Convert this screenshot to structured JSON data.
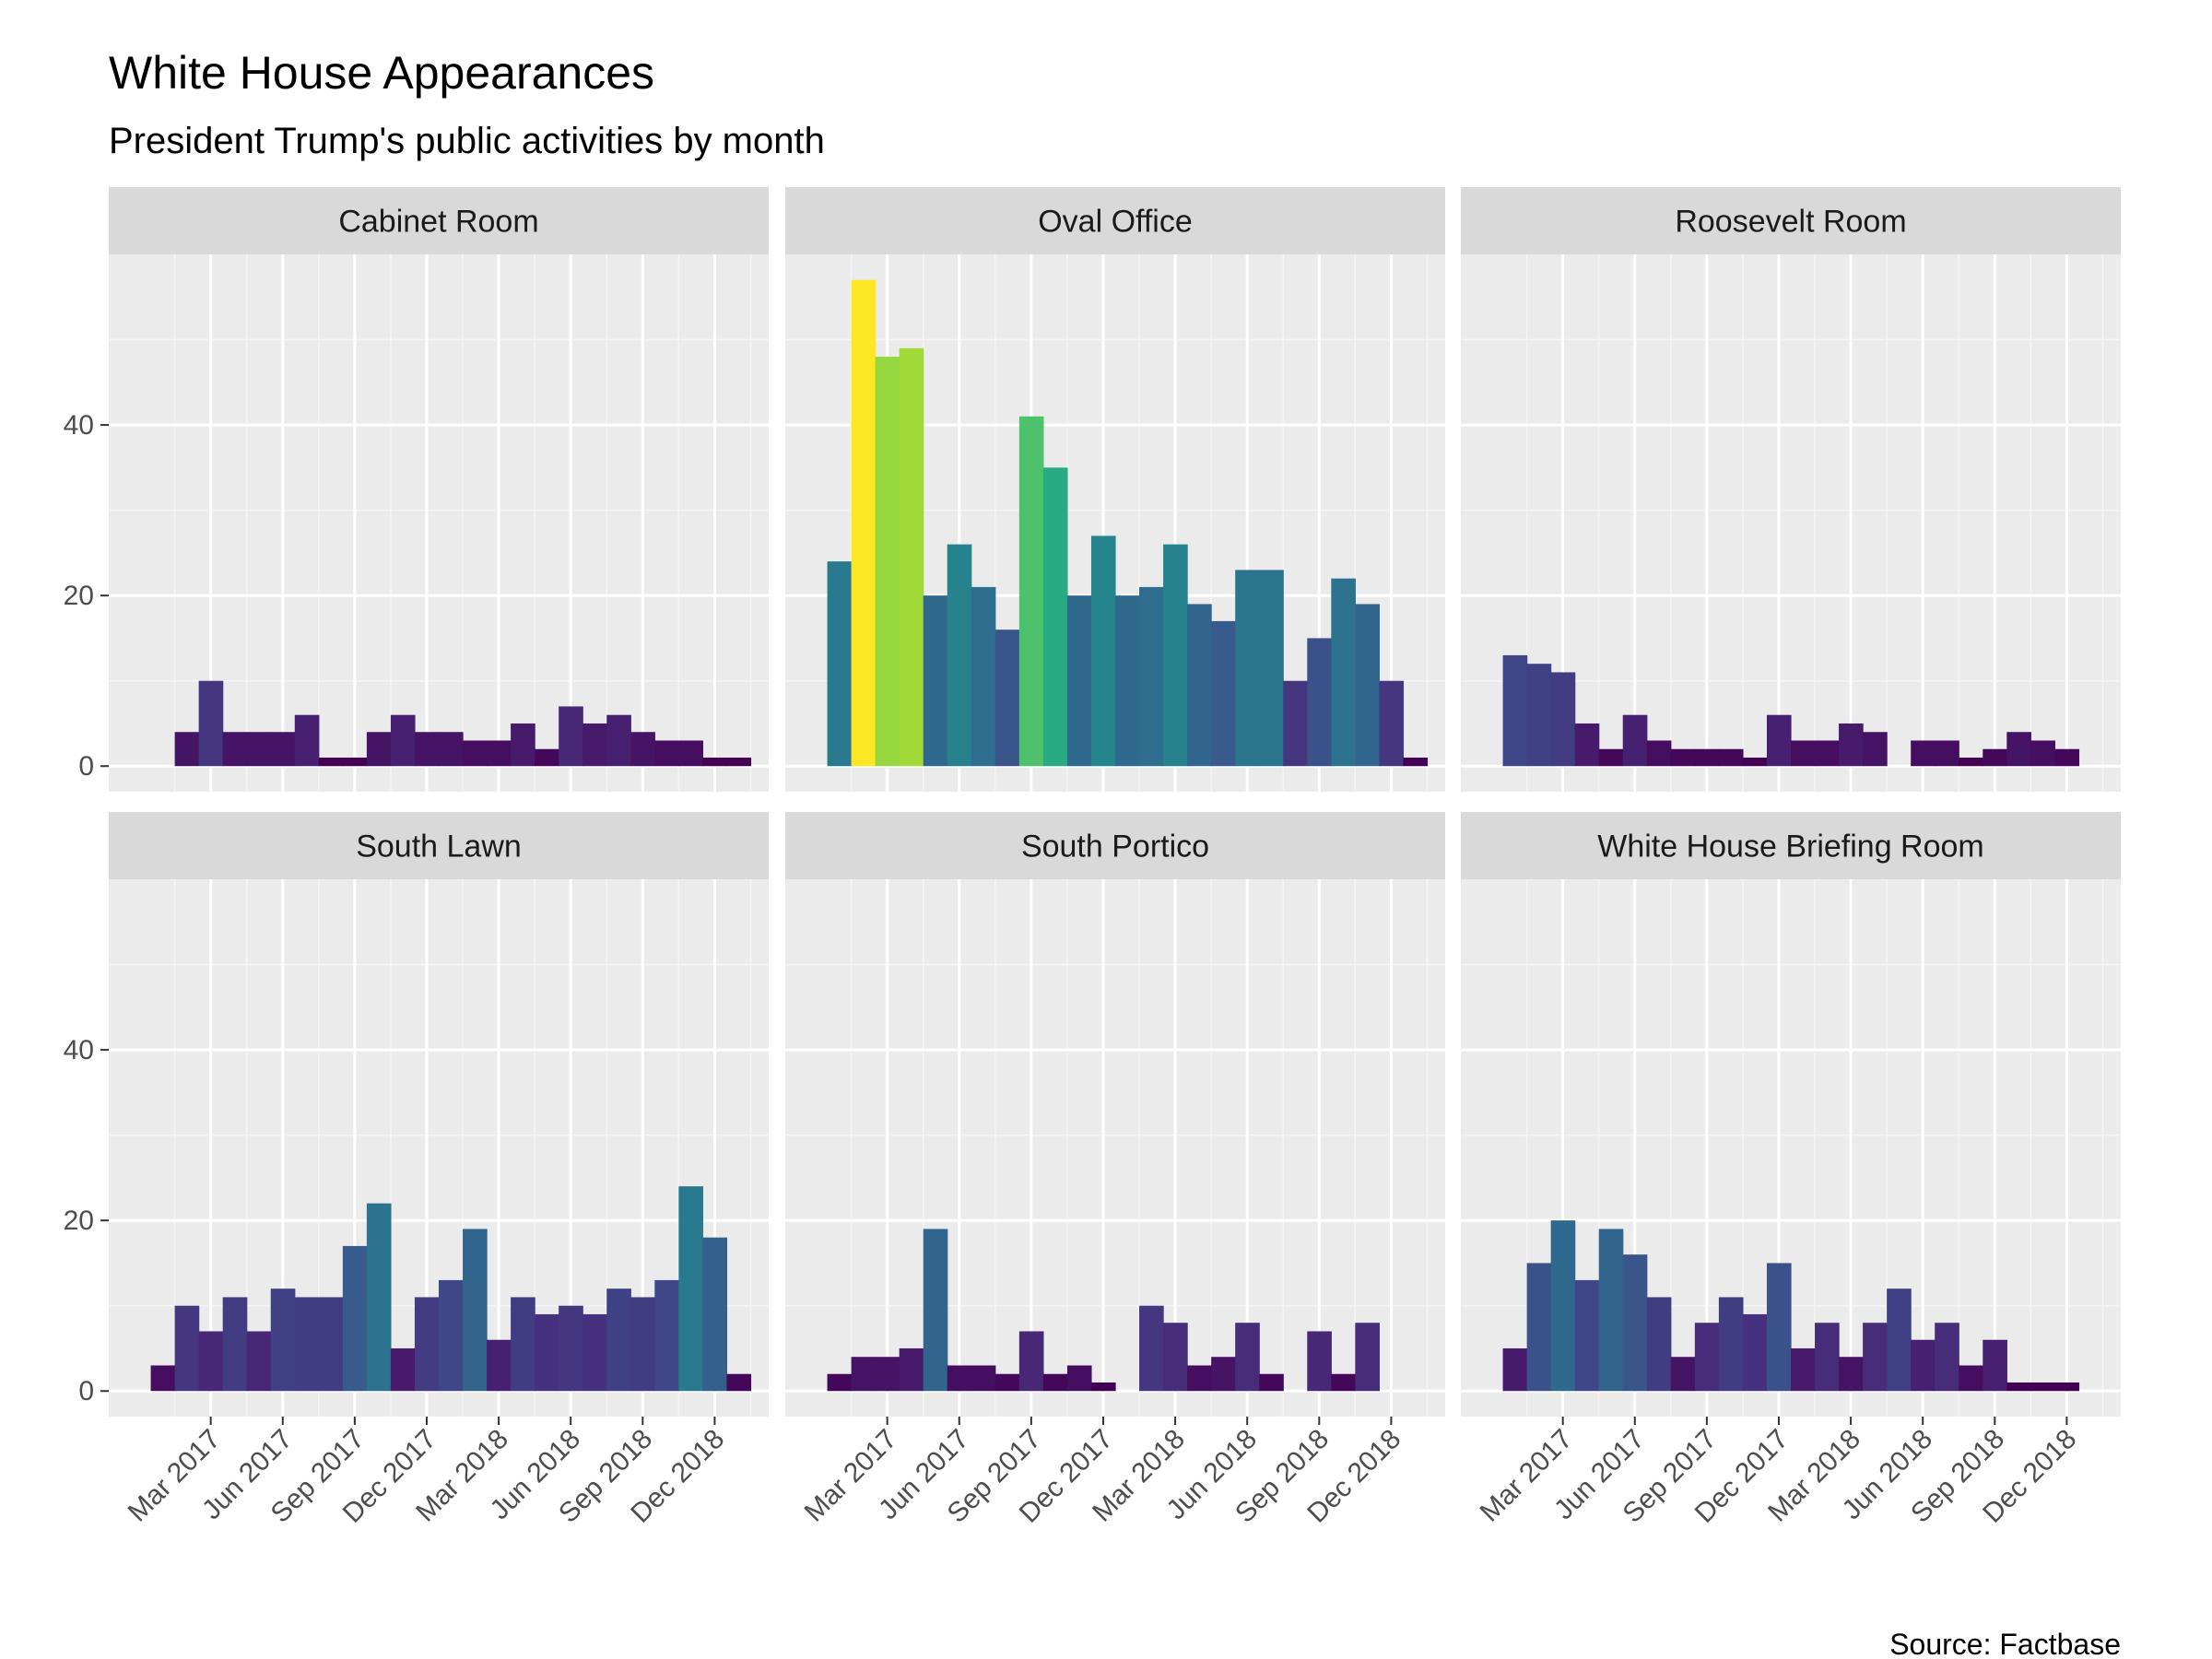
{
  "chart_data": {
    "type": "bar",
    "title": "White House Appearances",
    "subtitle": "President Trump's public activities by month",
    "caption": "Source: Factbase",
    "months": [
      "Jan 2017",
      "Feb 2017",
      "Mar 2017",
      "Apr 2017",
      "May 2017",
      "Jun 2017",
      "Jul 2017",
      "Aug 2017",
      "Sep 2017",
      "Oct 2017",
      "Nov 2017",
      "Dec 2017",
      "Jan 2018",
      "Feb 2018",
      "Mar 2018",
      "Apr 2018",
      "May 2018",
      "Jun 2018",
      "Jul 2018",
      "Aug 2018",
      "Sep 2018",
      "Oct 2018",
      "Nov 2018",
      "Dec 2018",
      "Jan 2019"
    ],
    "x_tick_labels": [
      "Mar 2017",
      "Jun 2017",
      "Sep 2017",
      "Dec 2017",
      "Mar 2018",
      "Jun 2018",
      "Sep 2018",
      "Dec 2018"
    ],
    "y_tick_labels": [
      "0",
      "20",
      "40"
    ],
    "ylim": [
      -3,
      60
    ],
    "color_scale": {
      "name": "viridis",
      "min": 1,
      "max": 57
    },
    "panels": [
      {
        "name": "Cabinet Room",
        "values": [
          0,
          4,
          10,
          4,
          4,
          4,
          6,
          1,
          1,
          4,
          6,
          4,
          4,
          3,
          3,
          5,
          2,
          7,
          5,
          6,
          4,
          3,
          3,
          1,
          1
        ]
      },
      {
        "name": "Oval Office",
        "values": [
          24,
          57,
          48,
          49,
          20,
          26,
          21,
          16,
          41,
          35,
          20,
          27,
          20,
          21,
          26,
          19,
          17,
          23,
          23,
          10,
          15,
          22,
          19,
          10,
          1
        ]
      },
      {
        "name": "Roosevelt Room",
        "values": [
          13,
          12,
          11,
          5,
          2,
          6,
          3,
          2,
          2,
          2,
          1,
          6,
          3,
          3,
          5,
          4,
          0,
          3,
          3,
          1,
          2,
          4,
          3,
          2,
          0
        ]
      },
      {
        "name": "South Lawn",
        "values": [
          3,
          10,
          7,
          11,
          7,
          12,
          11,
          11,
          17,
          22,
          5,
          11,
          13,
          19,
          6,
          11,
          9,
          10,
          9,
          12,
          11,
          13,
          24,
          18,
          2
        ]
      },
      {
        "name": "South Portico",
        "values": [
          2,
          4,
          4,
          5,
          19,
          3,
          3,
          2,
          7,
          2,
          3,
          1,
          0,
          10,
          8,
          3,
          4,
          8,
          2,
          0,
          7,
          2,
          8,
          0,
          0
        ]
      },
      {
        "name": "White House Briefing Room",
        "values": [
          5,
          15,
          20,
          13,
          19,
          16,
          11,
          4,
          8,
          11,
          9,
          15,
          5,
          8,
          4,
          8,
          12,
          6,
          8,
          3,
          6,
          1,
          1,
          1,
          0
        ]
      }
    ]
  }
}
